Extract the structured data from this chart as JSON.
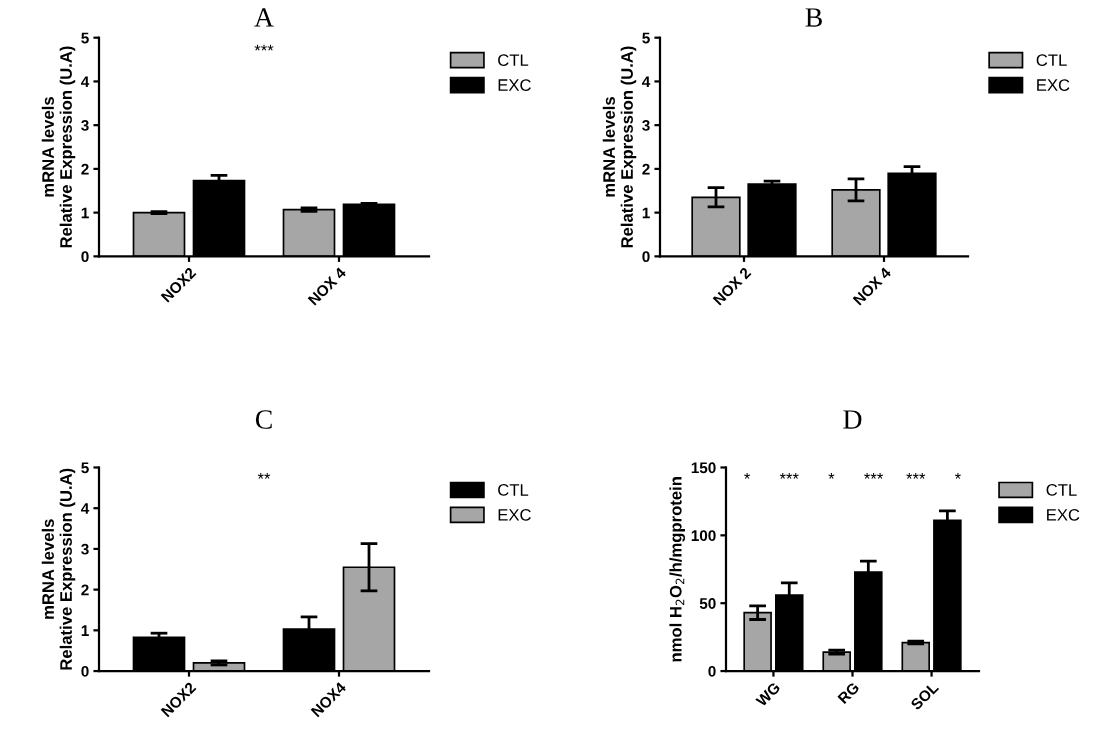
{
  "chart_data": [
    {
      "type": "bar",
      "title": "A",
      "ylabel": "mRNA levels\nRelative Expression (U.A)",
      "categories": [
        "NOX2",
        "NOX 4"
      ],
      "ylim": [
        0,
        5
      ],
      "yticks": [
        0,
        1,
        2,
        3,
        4,
        5
      ],
      "grid": false,
      "legend": "top right",
      "series": [
        {
          "name": "CTL",
          "color": "#a6a6a6",
          "values": [
            1.0,
            1.07
          ],
          "errors": [
            0.02,
            0.04
          ]
        },
        {
          "name": "EXC",
          "color": "#000000",
          "values": [
            1.73,
            1.19
          ],
          "errors": [
            0.12,
            0.02
          ]
        }
      ],
      "annotations": [
        "***"
      ]
    },
    {
      "type": "bar",
      "title": "B",
      "ylabel": "mRNA levels\nRelative Expression (U.A)",
      "categories": [
        "NOX 2",
        "NOX 4"
      ],
      "ylim": [
        0,
        5
      ],
      "yticks": [
        0,
        1,
        2,
        3,
        4,
        5
      ],
      "grid": false,
      "legend": "top right",
      "series": [
        {
          "name": "CTL",
          "color": "#a6a6a6",
          "values": [
            1.35,
            1.52
          ],
          "errors": [
            0.22,
            0.25
          ]
        },
        {
          "name": "EXC",
          "color": "#000000",
          "values": [
            1.65,
            1.9
          ],
          "errors": [
            0.07,
            0.15
          ]
        }
      ]
    },
    {
      "type": "bar",
      "title": "C",
      "ylabel": "mRNA levels\nRelative Expression (U.A)",
      "categories": [
        "NOX2",
        "NOX4"
      ],
      "ylim": [
        0,
        5
      ],
      "yticks": [
        0,
        1,
        2,
        3,
        4,
        5
      ],
      "grid": false,
      "legend": "top right",
      "series": [
        {
          "name": "CTL",
          "color": "#000000",
          "values": [
            0.83,
            1.03
          ],
          "errors": [
            0.1,
            0.3
          ]
        },
        {
          "name": "EXC",
          "color": "#a6a6a6",
          "values": [
            0.2,
            2.55
          ],
          "errors": [
            0.05,
            0.58
          ]
        }
      ],
      "annotations": [
        "**"
      ]
    },
    {
      "type": "bar",
      "title": "D",
      "ylabel": "nmol H$_{2}$O$_{2}$/h/mgprotein",
      "categories": [
        "WG",
        "RG",
        "SOL"
      ],
      "ylim": [
        0,
        150
      ],
      "yticks": [
        0,
        50,
        100,
        150
      ],
      "grid": false,
      "legend": "top right",
      "series": [
        {
          "name": "CTL",
          "color": "#a6a6a6",
          "values": [
            43,
            14,
            21
          ],
          "errors": [
            5,
            1.5,
            1
          ]
        },
        {
          "name": "EXC",
          "color": "#000000",
          "values": [
            56,
            73,
            111
          ],
          "errors": [
            9,
            8,
            7
          ]
        }
      ],
      "annotations": [
        "*",
        "***",
        "*",
        "***",
        "***",
        "*"
      ]
    }
  ]
}
